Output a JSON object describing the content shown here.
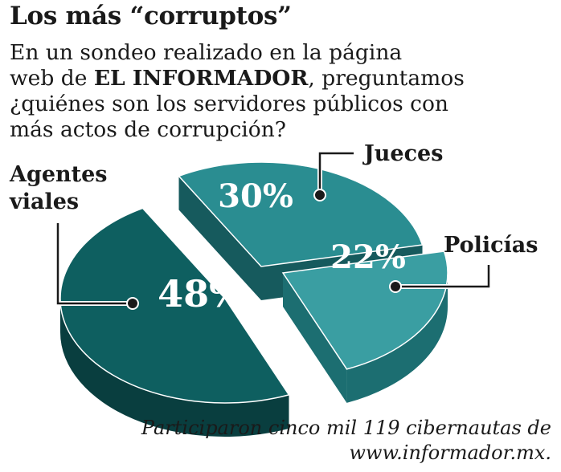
{
  "title": "Los más “corruptos”",
  "question": {
    "line1": "En un sondeo realizado en la página",
    "line2_pre": "web de ",
    "line2_bold": "EL INFORMADOR",
    "line2_post": ", preguntamos",
    "line3": "¿quiénes son los servidores públicos con",
    "line4": "más actos de corrupción?"
  },
  "footer": {
    "line1": "Participaron cinco mil 119 cibernautas de",
    "line2": "www.informador.mx."
  },
  "chart_data": {
    "type": "pie",
    "categories": [
      "Agentes viales",
      "Jueces",
      "Policías"
    ],
    "category_lines": [
      [
        "Agentes",
        "viales"
      ],
      [
        "Jueces"
      ],
      [
        "Policías"
      ]
    ],
    "values": [
      48,
      30,
      22
    ],
    "value_labels": [
      "48%",
      "30%",
      "22%"
    ],
    "colors": {
      "agentes_top": "#0e5f60",
      "agentes_side": "#093e3f",
      "jueces_top": "#2a8d91",
      "jueces_side": "#165a5d",
      "policias_top": "#3a9ea2",
      "policias_side": "#1c6e71",
      "leader_line": "#1a1a1a"
    }
  }
}
